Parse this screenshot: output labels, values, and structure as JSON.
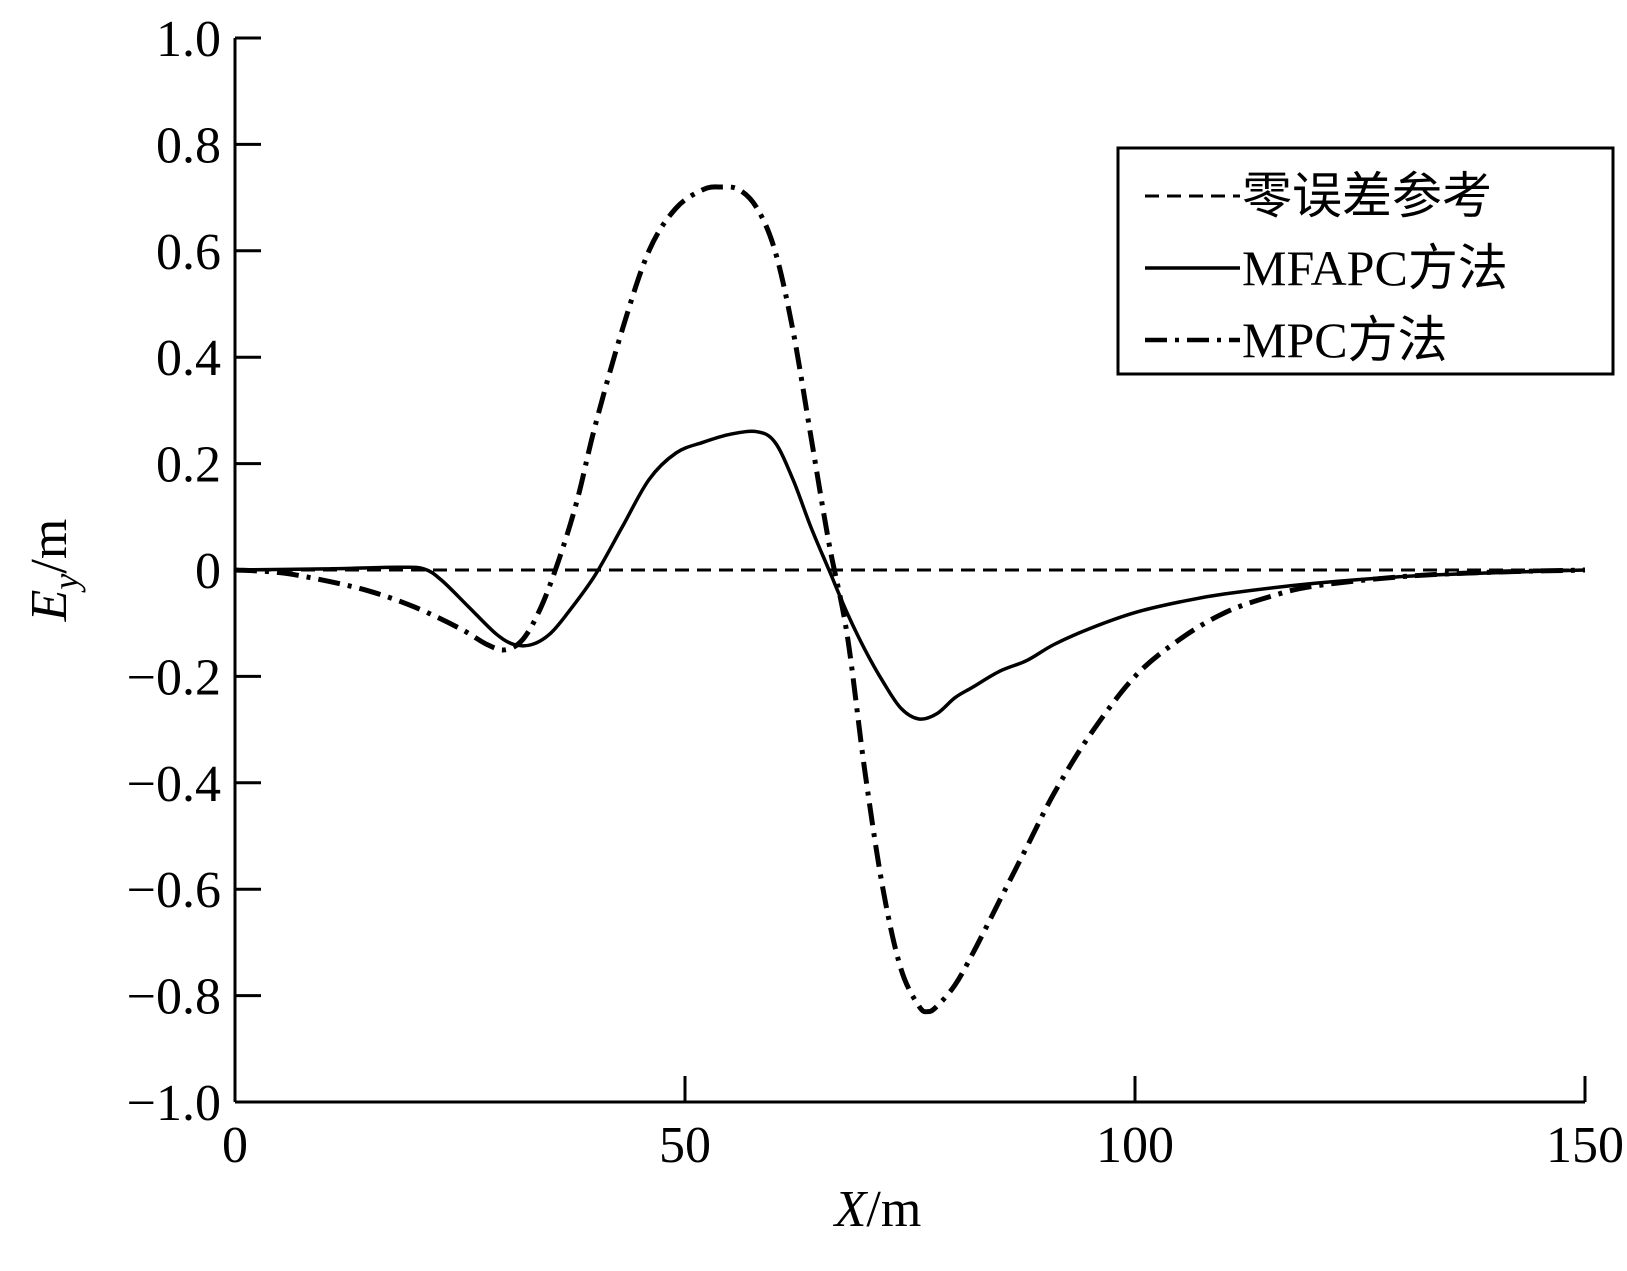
{
  "chart_data": {
    "type": "line",
    "xlabel": {
      "var": "X",
      "unit": "/m"
    },
    "ylabel": {
      "var": "E",
      "sub": "y",
      "unit": "/m"
    },
    "xlim": [
      0,
      150
    ],
    "ylim": [
      -1.0,
      1.0
    ],
    "x_ticks": [
      0,
      50,
      100,
      150
    ],
    "x_tick_labels": [
      "0",
      "50",
      "100",
      "150"
    ],
    "y_ticks": [
      1.0,
      0.8,
      0.6,
      0.4,
      0.2,
      0,
      -0.2,
      -0.4,
      -0.6,
      -0.8,
      -1.0
    ],
    "y_tick_labels": [
      "1.0",
      "0.8",
      "0.6",
      "0.4",
      "0.2",
      "0",
      "−0.2",
      "−0.4",
      "−0.6",
      "−0.8",
      "−1.0"
    ],
    "grid": false,
    "legend_position": "top-right",
    "series": [
      {
        "name": "零误差参考",
        "style": "dashed",
        "x": [
          0,
          150
        ],
        "y": [
          0,
          0
        ]
      },
      {
        "name": "MFAPC方法",
        "style": "solid",
        "x": [
          0,
          10,
          18,
          21,
          23,
          26,
          29,
          31,
          33,
          35,
          37,
          40,
          43,
          46,
          49,
          52,
          55,
          58,
          60,
          62,
          64,
          66,
          68,
          70,
          72,
          74,
          76,
          78,
          80,
          82,
          85,
          88,
          91,
          95,
          100,
          105,
          110,
          120,
          130,
          140,
          150
        ],
        "y": [
          0,
          0.002,
          0.005,
          0.002,
          -0.02,
          -0.07,
          -0.12,
          -0.14,
          -0.14,
          -0.12,
          -0.08,
          -0.01,
          0.08,
          0.17,
          0.22,
          0.24,
          0.255,
          0.26,
          0.24,
          0.17,
          0.08,
          0.0,
          -0.08,
          -0.15,
          -0.21,
          -0.26,
          -0.28,
          -0.27,
          -0.24,
          -0.22,
          -0.19,
          -0.17,
          -0.14,
          -0.11,
          -0.08,
          -0.06,
          -0.045,
          -0.025,
          -0.012,
          -0.005,
          0
        ]
      },
      {
        "name": "MPC方法",
        "style": "dashdot",
        "x": [
          0,
          5,
          10,
          15,
          20,
          25,
          28,
          30,
          32,
          34,
          36,
          38,
          40,
          43,
          46,
          49,
          52,
          54,
          56,
          58,
          60,
          62,
          64,
          66,
          68,
          70,
          72,
          74,
          76,
          77,
          78,
          80,
          82,
          85,
          88,
          91,
          95,
          100,
          105,
          110,
          115,
          120,
          130,
          140,
          150
        ],
        "y": [
          0,
          -0.005,
          -0.02,
          -0.04,
          -0.07,
          -0.11,
          -0.14,
          -0.15,
          -0.13,
          -0.07,
          0.02,
          0.13,
          0.27,
          0.45,
          0.6,
          0.68,
          0.715,
          0.72,
          0.715,
          0.68,
          0.6,
          0.45,
          0.25,
          0.05,
          -0.12,
          -0.38,
          -0.6,
          -0.75,
          -0.82,
          -0.83,
          -0.82,
          -0.78,
          -0.72,
          -0.62,
          -0.52,
          -0.42,
          -0.31,
          -0.2,
          -0.13,
          -0.08,
          -0.05,
          -0.03,
          -0.012,
          -0.004,
          0
        ]
      }
    ]
  }
}
